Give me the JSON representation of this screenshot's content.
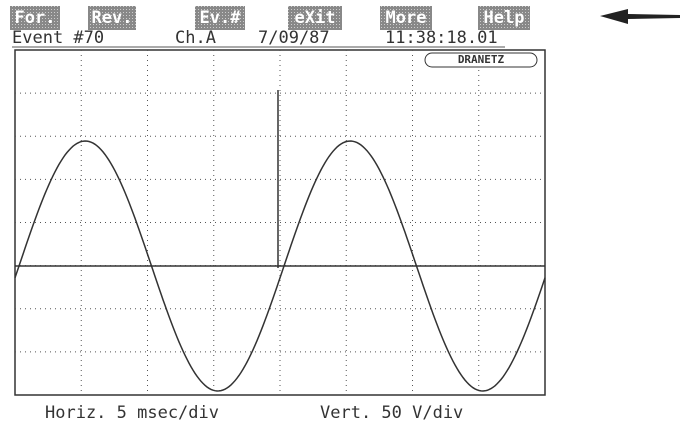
{
  "menu": [
    "For.",
    "Rev.",
    "Ev.#",
    "eXit",
    "More",
    "Help"
  ],
  "header": {
    "event": "Event #70",
    "channel": "Ch.A",
    "date": "7/09/87",
    "time": "11:38:18.01"
  },
  "logo": "DRANETZ",
  "footer": {
    "horizontal": "Horiz. 5 msec/div",
    "vertical": "Vert. 50 V/div"
  }
}
